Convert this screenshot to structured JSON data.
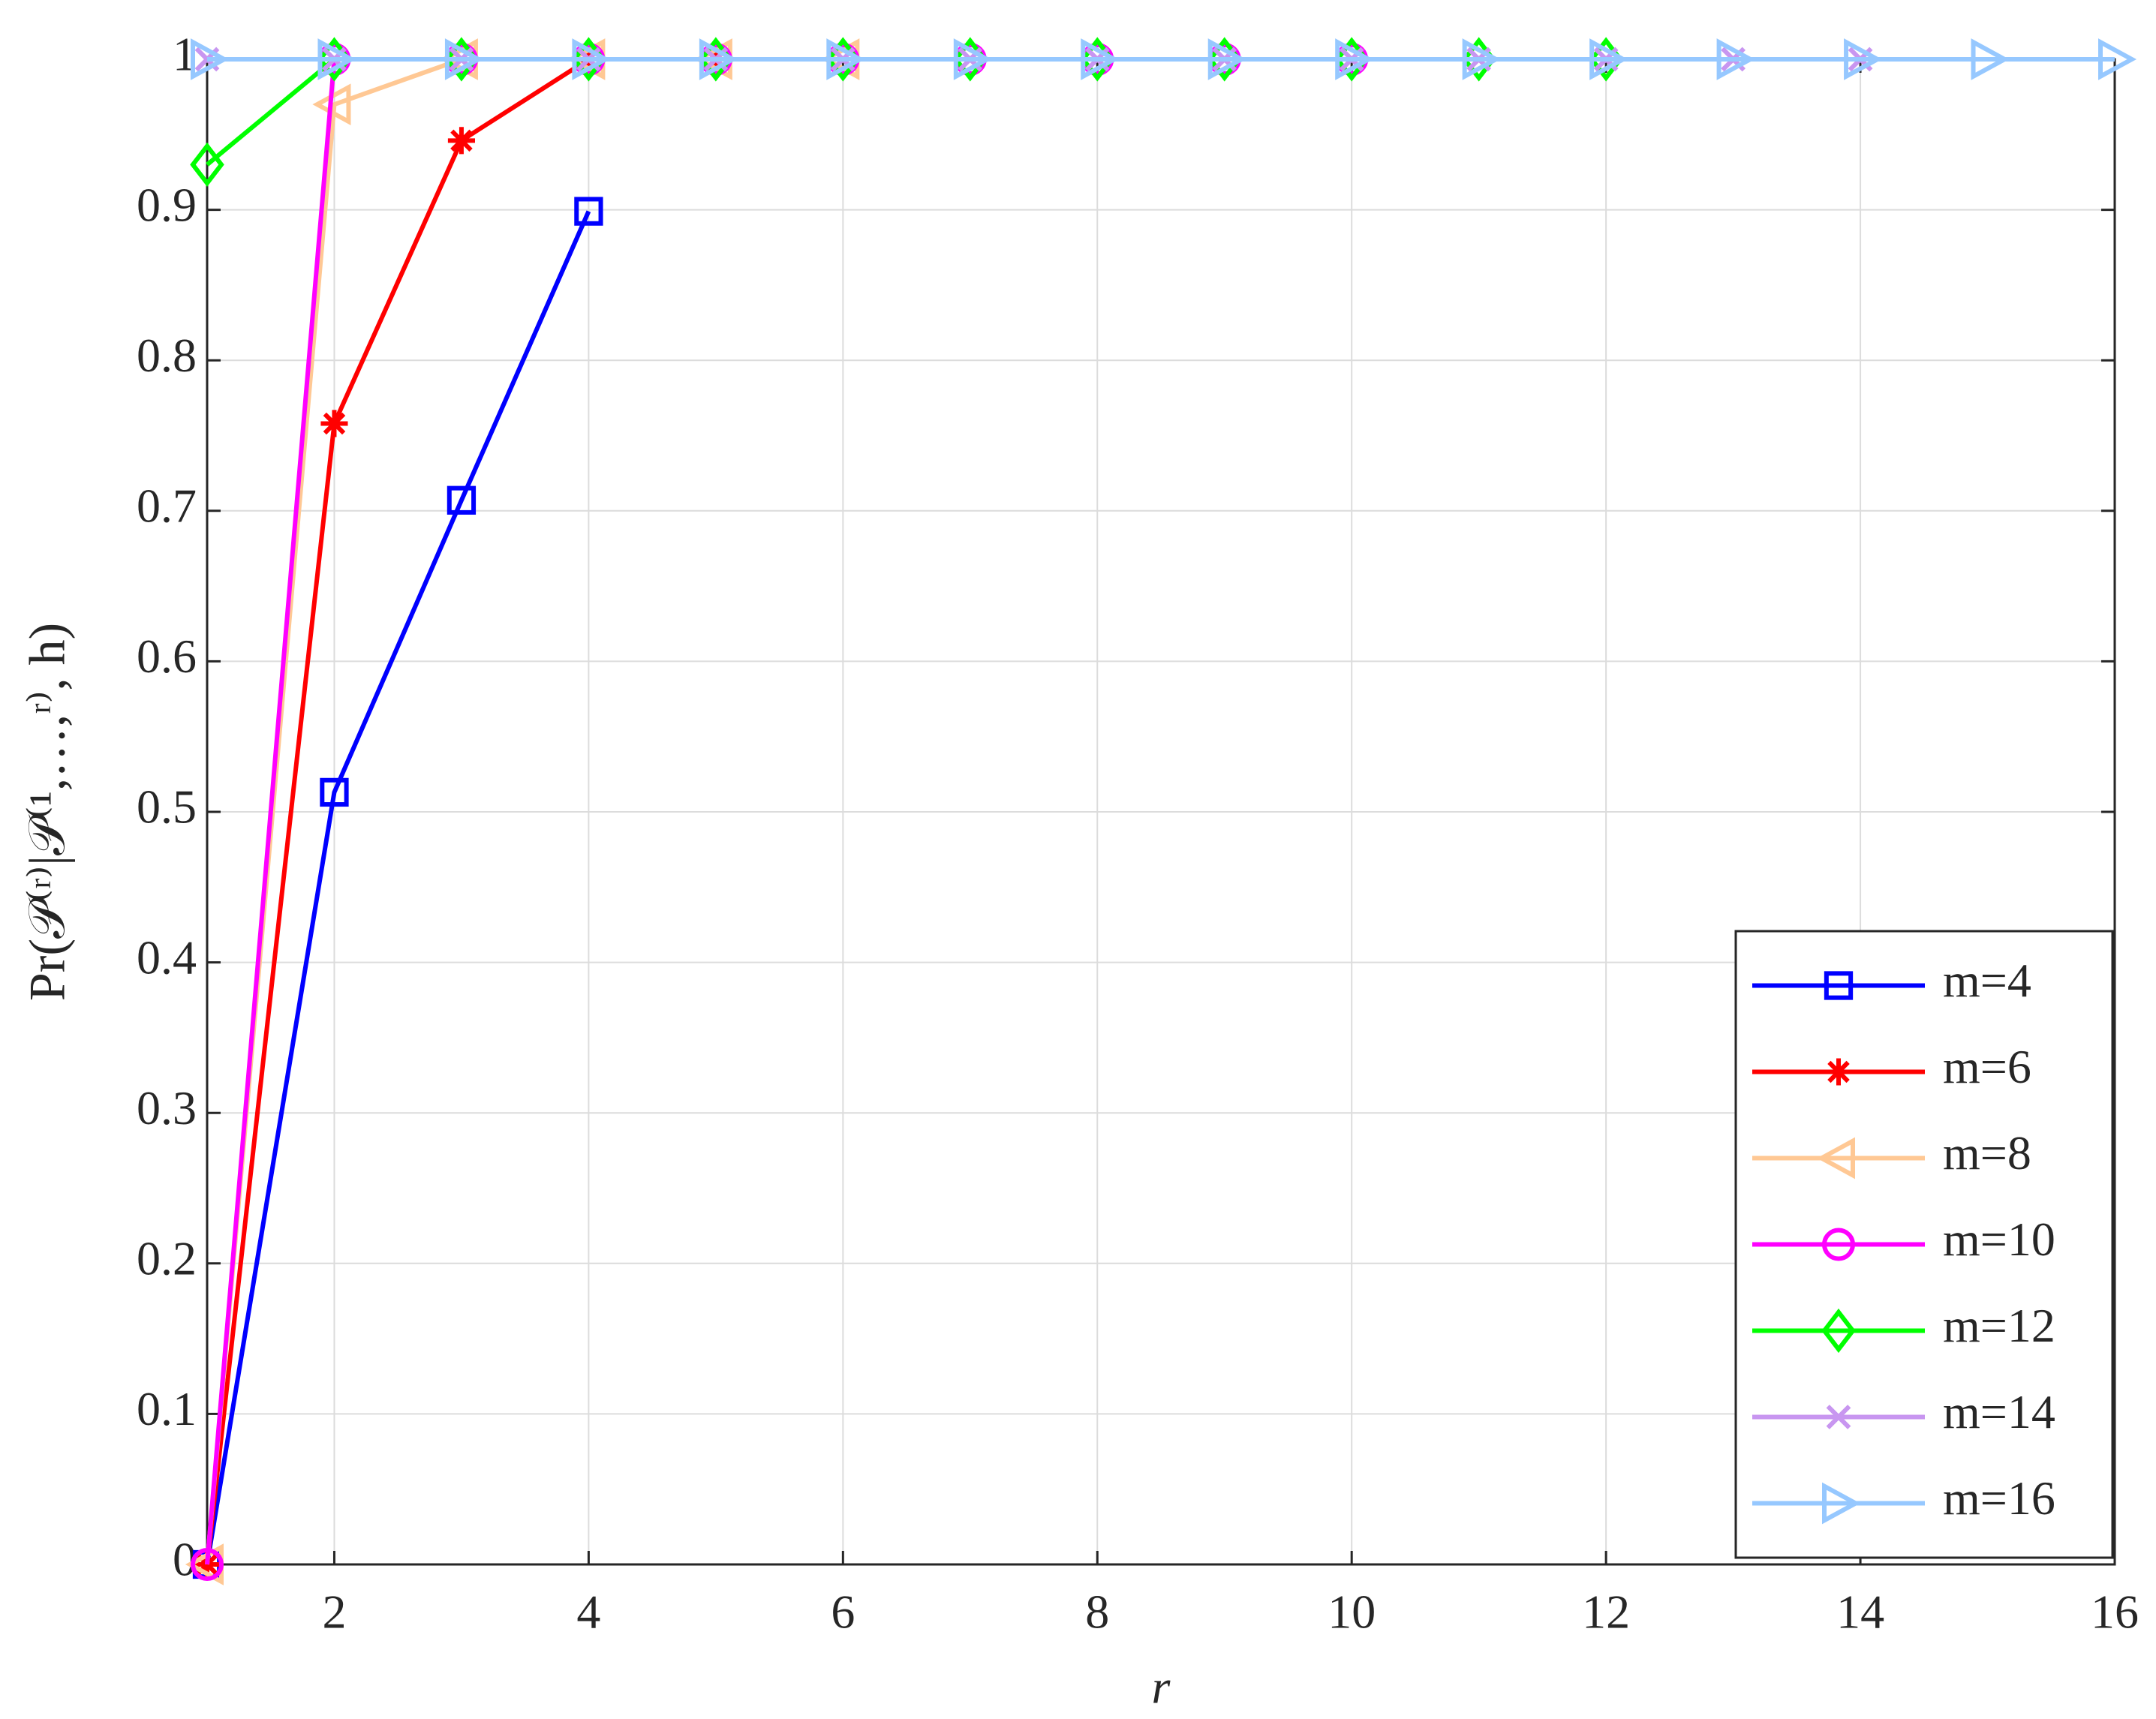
{
  "chart_data": {
    "type": "line",
    "xlabel": "r",
    "ylabel": "Pr(𝒫⁽ʳ⁾|𝒫⁽¹,…,ʳ⁾, h)",
    "x": [
      1,
      2,
      3,
      4,
      5,
      6,
      7,
      8,
      9,
      10,
      11,
      12,
      13,
      14,
      15,
      16
    ],
    "xlim": [
      1,
      16
    ],
    "xticks": [
      2,
      4,
      6,
      8,
      10,
      12,
      14,
      16
    ],
    "ylim": [
      0,
      1
    ],
    "yticks": [
      0,
      0.1,
      0.2,
      0.3,
      0.4,
      0.5,
      0.6,
      0.7,
      0.8,
      0.9,
      1
    ],
    "grid": true,
    "legend_position": "lower right",
    "series": [
      {
        "name": "m=4",
        "color": "#0000ff",
        "marker": "square",
        "values": [
          0,
          0.513,
          0.707,
          0.899,
          null,
          null,
          null,
          null,
          null,
          null,
          null,
          null,
          null,
          null,
          null,
          null
        ]
      },
      {
        "name": "m=6",
        "color": "#ff0000",
        "marker": "asterisk",
        "values": [
          0,
          0.758,
          0.946,
          1,
          1,
          null,
          null,
          null,
          null,
          null,
          null,
          null,
          null,
          null,
          null,
          null
        ]
      },
      {
        "name": "m=8",
        "color": "#ffc894",
        "marker": "triangle-left",
        "values": [
          0,
          0.97,
          1,
          1,
          1,
          1,
          null,
          null,
          null,
          null,
          null,
          null,
          null,
          null,
          null,
          null
        ]
      },
      {
        "name": "m=10",
        "color": "#ff00ff",
        "marker": "circle",
        "values": [
          0,
          1,
          1,
          1,
          1,
          1,
          1,
          1,
          1,
          1,
          null,
          null,
          null,
          null,
          null,
          null
        ]
      },
      {
        "name": "m=12",
        "color": "#00ff00",
        "marker": "diamond",
        "values": [
          0.93,
          1,
          1,
          1,
          1,
          1,
          1,
          1,
          1,
          1,
          1,
          1,
          null,
          null,
          null,
          null
        ]
      },
      {
        "name": "m=14",
        "color": "#c896f0",
        "marker": "x",
        "values": [
          1,
          1,
          1,
          1,
          1,
          1,
          1,
          1,
          1,
          1,
          1,
          1,
          1,
          1,
          null,
          null
        ]
      },
      {
        "name": "m=16",
        "color": "#96c8ff",
        "marker": "triangle-right",
        "values": [
          1,
          1,
          1,
          1,
          1,
          1,
          1,
          1,
          1,
          1,
          1,
          1,
          1,
          1,
          1,
          1
        ]
      }
    ]
  }
}
